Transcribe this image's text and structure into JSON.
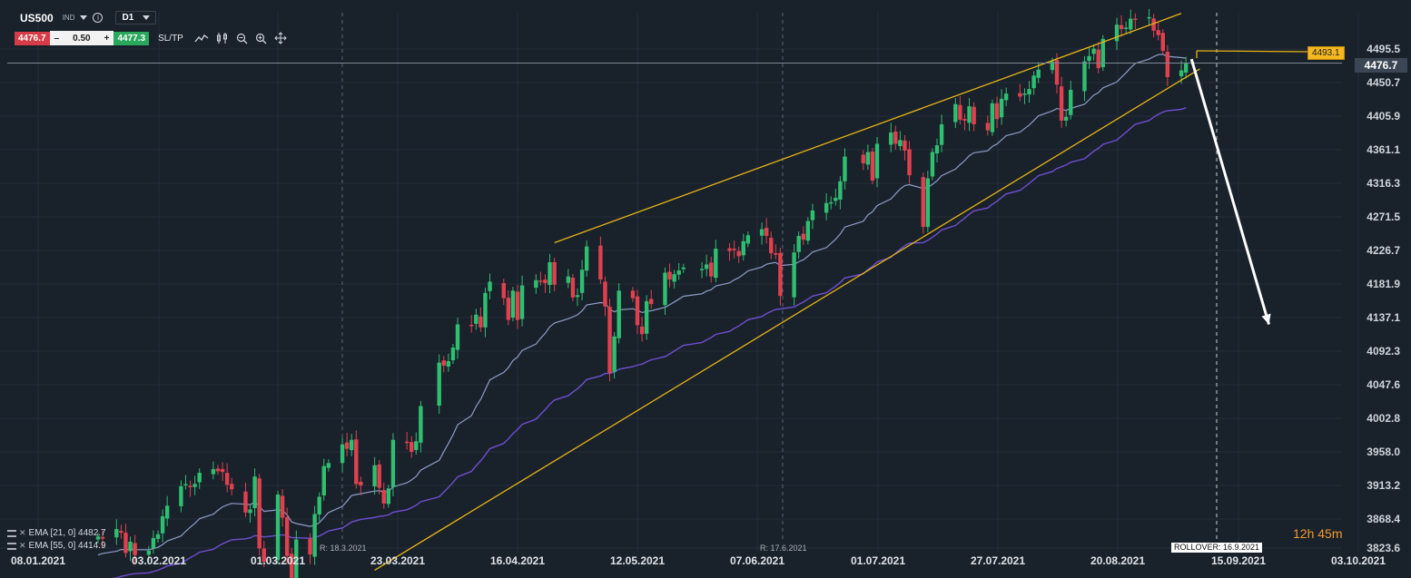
{
  "header": {
    "symbol": "US500",
    "symbol_type": "IND",
    "info": "i",
    "timeframe": "D1",
    "sell_price": "4476.7",
    "minus": "–",
    "quantity": "0.50",
    "plus": "+",
    "buy_price": "4477.3",
    "sltp": "SL/TP",
    "tool_icons": [
      "line-chart-icon",
      "candles-icon",
      "zoom-out-icon",
      "zoom-in-icon",
      "crosshair-icon"
    ]
  },
  "price_tags": {
    "current": "4476.7",
    "ask_line": "4493.1"
  },
  "annotations": {
    "rollover": "ROLLOVER: 16.9.2021",
    "r1": "R: 18.3.2021",
    "r2": "R: 17.6.2021",
    "countdown_hours": "12h",
    "countdown_minutes": "45m"
  },
  "ema_legend": [
    {
      "label": "EMA [21, 0] 4482.7"
    },
    {
      "label": "EMA [55, 0] 4414.9"
    }
  ],
  "colors": {
    "bull": "#2fbf71",
    "bear": "#e0414f",
    "ema21": "#8e9ec7",
    "ema55": "#6f4fd0",
    "channel": "#e7b416",
    "background": "#19212b"
  },
  "chart_data": {
    "type": "candlestick",
    "timeframe": "D1",
    "y_axis_ticks": [
      "4495.5",
      "4450.7",
      "4405.9",
      "4361.1",
      "4316.3",
      "4271.5",
      "4226.7",
      "4181.9",
      "4137.1",
      "4092.3",
      "4047.6",
      "4002.8",
      "3958.0",
      "3913.2",
      "3868.4",
      "3823.6"
    ],
    "x_axis_ticks": [
      "08.01.2021",
      "03.02.2021",
      "01.03.2021",
      "23.03.2021",
      "16.04.2021",
      "12.05.2021",
      "07.06.2021",
      "01.07.2021",
      "27.07.2021",
      "20.08.2021",
      "15.09.2021",
      "03.10.2021"
    ],
    "candles": [
      {
        "date": "2021-01-21",
        "close": 3845
      },
      {
        "date": "2021-01-22",
        "close": 3842
      },
      {
        "date": "2021-01-25",
        "close": 3855
      },
      {
        "date": "2021-01-26",
        "close": 3850
      },
      {
        "date": "2021-01-27",
        "close": 3823
      },
      {
        "date": "2021-01-28",
        "close": 3838
      },
      {
        "date": "2021-01-29",
        "close": 3820
      },
      {
        "date": "2021-02-01",
        "close": 3826
      },
      {
        "date": "2021-02-02",
        "close": 3843
      },
      {
        "date": "2021-02-03",
        "close": 3848
      },
      {
        "date": "2021-02-04",
        "close": 3872
      },
      {
        "date": "2021-02-05",
        "close": 3886
      },
      {
        "date": "2021-02-08",
        "close": 3912
      },
      {
        "date": "2021-02-09",
        "close": 3915
      },
      {
        "date": "2021-02-10",
        "close": 3911
      },
      {
        "date": "2021-02-11",
        "close": 3915
      },
      {
        "date": "2021-02-12",
        "close": 3930
      },
      {
        "date": "2021-02-15",
        "close": 3935
      },
      {
        "date": "2021-02-16",
        "close": 3932
      },
      {
        "date": "2021-02-17",
        "close": 3931
      },
      {
        "date": "2021-02-18",
        "close": 3914
      },
      {
        "date": "2021-02-19",
        "close": 3908
      },
      {
        "date": "2021-02-22",
        "close": 3877
      },
      {
        "date": "2021-02-23",
        "close": 3881
      },
      {
        "date": "2021-02-24",
        "close": 3925
      },
      {
        "date": "2021-02-25",
        "close": 3829
      },
      {
        "date": "2021-02-26",
        "close": 3811
      },
      {
        "date": "2021-03-01",
        "close": 3901
      },
      {
        "date": "2021-03-02",
        "close": 3870
      },
      {
        "date": "2021-03-03",
        "close": 3819
      },
      {
        "date": "2021-03-04",
        "close": 3768
      },
      {
        "date": "2021-03-05",
        "close": 3841
      },
      {
        "date": "2021-03-08",
        "close": 3821
      },
      {
        "date": "2021-03-09",
        "close": 3875
      },
      {
        "date": "2021-03-10",
        "close": 3898
      },
      {
        "date": "2021-03-11",
        "close": 3939
      },
      {
        "date": "2021-03-12",
        "close": 3943
      },
      {
        "date": "2021-03-15",
        "close": 3968
      },
      {
        "date": "2021-03-16",
        "close": 3962
      },
      {
        "date": "2021-03-17",
        "close": 3974
      },
      {
        "date": "2021-03-18",
        "close": 3915
      },
      {
        "date": "2021-03-19",
        "close": 3913
      },
      {
        "date": "2021-03-22",
        "close": 3940
      },
      {
        "date": "2021-03-23",
        "close": 3910
      },
      {
        "date": "2021-03-24",
        "close": 3889
      },
      {
        "date": "2021-03-25",
        "close": 3909
      },
      {
        "date": "2021-03-26",
        "close": 3974
      },
      {
        "date": "2021-03-29",
        "close": 3971
      },
      {
        "date": "2021-03-30",
        "close": 3958
      },
      {
        "date": "2021-03-31",
        "close": 3972
      },
      {
        "date": "2021-04-01",
        "close": 4019
      },
      {
        "date": "2021-04-05",
        "close": 4077
      },
      {
        "date": "2021-04-06",
        "close": 4073
      },
      {
        "date": "2021-04-07",
        "close": 4079
      },
      {
        "date": "2021-04-08",
        "close": 4097
      },
      {
        "date": "2021-04-09",
        "close": 4128
      },
      {
        "date": "2021-04-12",
        "close": 4127
      },
      {
        "date": "2021-04-13",
        "close": 4141
      },
      {
        "date": "2021-04-14",
        "close": 4124
      },
      {
        "date": "2021-04-15",
        "close": 4170
      },
      {
        "date": "2021-04-16",
        "close": 4185
      },
      {
        "date": "2021-04-19",
        "close": 4163
      },
      {
        "date": "2021-04-20",
        "close": 4134
      },
      {
        "date": "2021-04-21",
        "close": 4173
      },
      {
        "date": "2021-04-22",
        "close": 4134
      },
      {
        "date": "2021-04-23",
        "close": 4180
      },
      {
        "date": "2021-04-26",
        "close": 4187
      },
      {
        "date": "2021-04-27",
        "close": 4186
      },
      {
        "date": "2021-04-28",
        "close": 4183
      },
      {
        "date": "2021-04-29",
        "close": 4211
      },
      {
        "date": "2021-04-30",
        "close": 4181
      },
      {
        "date": "2021-05-03",
        "close": 4192
      },
      {
        "date": "2021-05-04",
        "close": 4164
      },
      {
        "date": "2021-05-05",
        "close": 4167
      },
      {
        "date": "2021-05-06",
        "close": 4201
      },
      {
        "date": "2021-05-07",
        "close": 4232
      },
      {
        "date": "2021-05-10",
        "close": 4188
      },
      {
        "date": "2021-05-11",
        "close": 4152
      },
      {
        "date": "2021-05-12",
        "close": 4063
      },
      {
        "date": "2021-05-13",
        "close": 4112
      },
      {
        "date": "2021-05-14",
        "close": 4173
      },
      {
        "date": "2021-05-17",
        "close": 4163
      },
      {
        "date": "2021-05-18",
        "close": 4127
      },
      {
        "date": "2021-05-19",
        "close": 4115
      },
      {
        "date": "2021-05-20",
        "close": 4159
      },
      {
        "date": "2021-05-21",
        "close": 4155
      },
      {
        "date": "2021-05-24",
        "close": 4197
      },
      {
        "date": "2021-05-25",
        "close": 4188
      },
      {
        "date": "2021-05-26",
        "close": 4195
      },
      {
        "date": "2021-05-27",
        "close": 4200
      },
      {
        "date": "2021-05-28",
        "close": 4204
      },
      {
        "date": "2021-06-01",
        "close": 4202
      },
      {
        "date": "2021-06-02",
        "close": 4208
      },
      {
        "date": "2021-06-03",
        "close": 4192
      },
      {
        "date": "2021-06-04",
        "close": 4229
      },
      {
        "date": "2021-06-07",
        "close": 4226
      },
      {
        "date": "2021-06-08",
        "close": 4227
      },
      {
        "date": "2021-06-09",
        "close": 4219
      },
      {
        "date": "2021-06-10",
        "close": 4239
      },
      {
        "date": "2021-06-11",
        "close": 4247
      },
      {
        "date": "2021-06-14",
        "close": 4255
      },
      {
        "date": "2021-06-15",
        "close": 4246
      },
      {
        "date": "2021-06-16",
        "close": 4223
      },
      {
        "date": "2021-06-17",
        "close": 4221
      },
      {
        "date": "2021-06-18",
        "close": 4166
      },
      {
        "date": "2021-06-21",
        "close": 4224
      },
      {
        "date": "2021-06-22",
        "close": 4246
      },
      {
        "date": "2021-06-23",
        "close": 4241
      },
      {
        "date": "2021-06-24",
        "close": 4266
      },
      {
        "date": "2021-06-25",
        "close": 4280
      },
      {
        "date": "2021-06-28",
        "close": 4290
      },
      {
        "date": "2021-06-29",
        "close": 4291
      },
      {
        "date": "2021-06-30",
        "close": 4297
      },
      {
        "date": "2021-07-01",
        "close": 4319
      },
      {
        "date": "2021-07-02",
        "close": 4352
      },
      {
        "date": "2021-07-06",
        "close": 4343
      },
      {
        "date": "2021-07-07",
        "close": 4358
      },
      {
        "date": "2021-07-08",
        "close": 4320
      },
      {
        "date": "2021-07-09",
        "close": 4369
      },
      {
        "date": "2021-07-12",
        "close": 4384
      },
      {
        "date": "2021-07-13",
        "close": 4369
      },
      {
        "date": "2021-07-14",
        "close": 4374
      },
      {
        "date": "2021-07-15",
        "close": 4360
      },
      {
        "date": "2021-07-16",
        "close": 4327
      },
      {
        "date": "2021-07-19",
        "close": 4258
      },
      {
        "date": "2021-07-20",
        "close": 4323
      },
      {
        "date": "2021-07-21",
        "close": 4358
      },
      {
        "date": "2021-07-22",
        "close": 4367
      },
      {
        "date": "2021-07-23",
        "close": 4395
      },
      {
        "date": "2021-07-26",
        "close": 4422
      },
      {
        "date": "2021-07-27",
        "close": 4401
      },
      {
        "date": "2021-07-28",
        "close": 4400
      },
      {
        "date": "2021-07-29",
        "close": 4419
      },
      {
        "date": "2021-07-30",
        "close": 4395
      },
      {
        "date": "2021-08-02",
        "close": 4387
      },
      {
        "date": "2021-08-03",
        "close": 4423
      },
      {
        "date": "2021-08-04",
        "close": 4402
      },
      {
        "date": "2021-08-05",
        "close": 4429
      },
      {
        "date": "2021-08-06",
        "close": 4436
      },
      {
        "date": "2021-08-09",
        "close": 4432
      },
      {
        "date": "2021-08-10",
        "close": 4436
      },
      {
        "date": "2021-08-11",
        "close": 4442
      },
      {
        "date": "2021-08-12",
        "close": 4460
      },
      {
        "date": "2021-08-13",
        "close": 4468
      },
      {
        "date": "2021-08-16",
        "close": 4479
      },
      {
        "date": "2021-08-17",
        "close": 4448
      },
      {
        "date": "2021-08-18",
        "close": 4400
      },
      {
        "date": "2021-08-19",
        "close": 4405
      },
      {
        "date": "2021-08-20",
        "close": 4441
      },
      {
        "date": "2021-08-23",
        "close": 4479
      },
      {
        "date": "2021-08-24",
        "close": 4486
      },
      {
        "date": "2021-08-25",
        "close": 4496
      },
      {
        "date": "2021-08-26",
        "close": 4470
      },
      {
        "date": "2021-08-27",
        "close": 4509
      },
      {
        "date": "2021-08-30",
        "close": 4528
      },
      {
        "date": "2021-08-31",
        "close": 4522
      },
      {
        "date": "2021-09-01",
        "close": 4524
      },
      {
        "date": "2021-09-02",
        "close": 4536
      },
      {
        "date": "2021-09-03",
        "close": 4535
      },
      {
        "date": "2021-09-06",
        "close": 4538
      },
      {
        "date": "2021-09-07",
        "close": 4520
      },
      {
        "date": "2021-09-08",
        "close": 4514
      },
      {
        "date": "2021-09-09",
        "close": 4493
      },
      {
        "date": "2021-09-10",
        "close": 4458
      },
      {
        "date": "2021-09-13",
        "close": 4467
      },
      {
        "date": "2021-09-14",
        "close": 4477
      }
    ],
    "ema21_end": 4482.7,
    "ema55_end": 4414.9,
    "channel_upper": [
      [
        "2021-04-30",
        4237
      ],
      [
        "2021-09-13",
        4543
      ]
    ],
    "channel_lower": [
      [
        "2021-03-22",
        3800
      ],
      [
        "2021-09-17",
        4469
      ]
    ],
    "projection_arrow": [
      [
        "2021-09-15",
        4482
      ],
      [
        "2021-10-02",
        4128
      ]
    ],
    "last_close": 4476.7,
    "ask_level": 4493.1,
    "grid": true
  }
}
